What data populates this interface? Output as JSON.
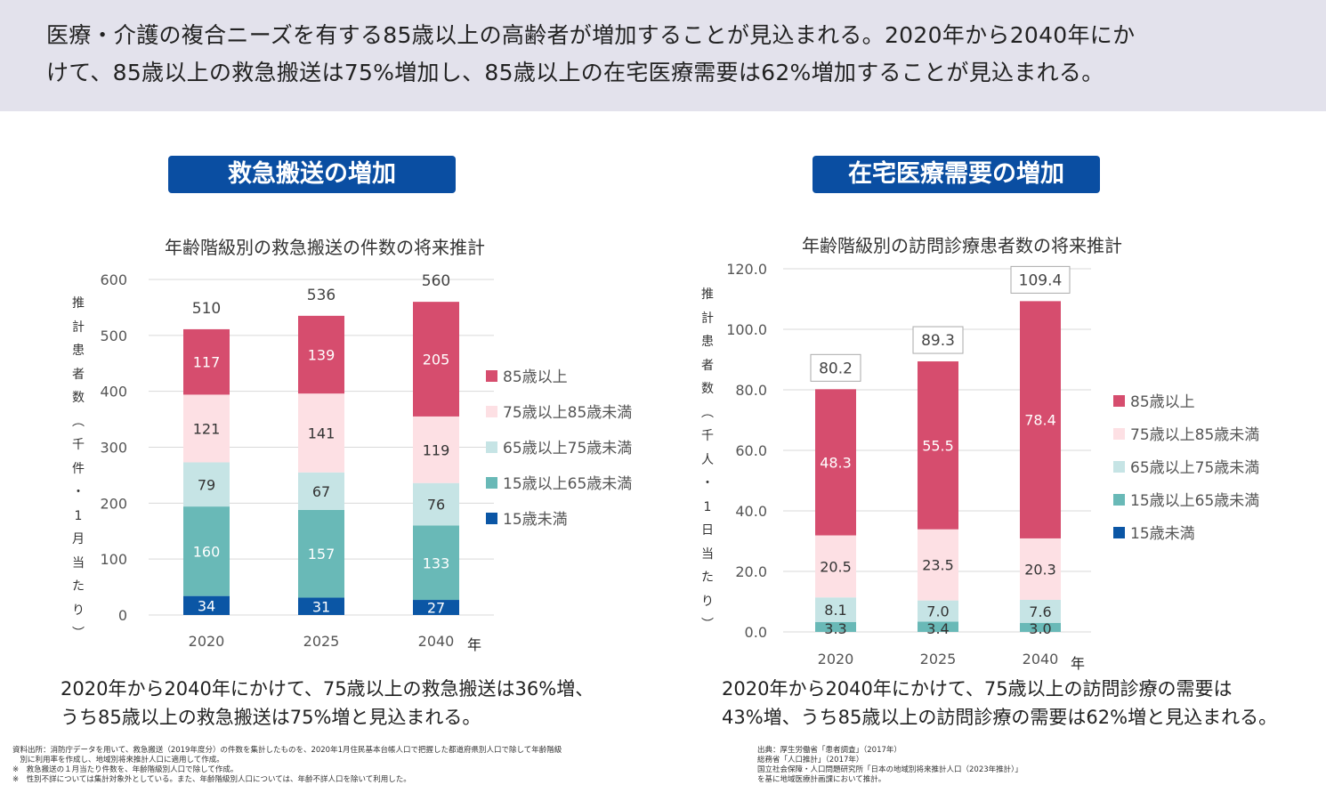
{
  "header": {
    "line1": "医療・介護の複合ニーズを有する85歳以上の高齢者が増加することが見込まれる。2020年から2040年にか",
    "line2": "けて、85歳以上の救急搬送は75%増加し、85歳以上の在宅医療需要は62%増加することが見込まれる。"
  },
  "left_panel": {
    "badge": "救急搬送の増加",
    "summary_line1": "2020年から2040年にかけて、75歳以上の救急搬送は36%増、",
    "summary_line2": "うち85歳以上の救急搬送は75%増と見込まれる。",
    "notes": [
      "資料出所：消防庁データを用いて、救急搬送（2019年度分）の件数を集計したものを、2020年1月住民基本台帳人口で把握した都道府県別人口で除して年齢階級",
      "　別に利用率を作成し、地域別将来推計人口に適用して作成。",
      "※　救急搬送の１月当たり件数を、年齢階級別人口で除して作成。",
      "※　性別不詳については集計対象外としている。また、年齢階級別人口については、年齢不詳人口を除いて利用した。"
    ]
  },
  "right_panel": {
    "badge": "在宅医療需要の増加",
    "summary_line1": "2020年から2040年にかけて、75歳以上の訪問診療の需要は",
    "summary_line2": "43%増、うち85歳以上の訪問診療の需要は62%増と見込まれる。",
    "notes": [
      "出典：厚生労働省「患者調査」（2017年）",
      "総務省「人口推計」（2017年）",
      "国立社会保障・人口問題研究所「日本の地域別将来推計人口（2023年推計）」",
      "を基に地域医療計画課において推計。"
    ]
  },
  "colors": {
    "s85": "#d64d6e",
    "s75_85": "#fde0e4",
    "s65_75": "#c6e4e5",
    "s15_65": "#69b9b7",
    "s0_15": "#0b56a5",
    "badge": "#0a4ea2",
    "header_bg": "#e3e2ec"
  },
  "chart_data": [
    {
      "type": "bar",
      "stacked": true,
      "title": "年齢階級別の救急搬送の件数の将来推計",
      "ylabel": "推計患者数（千件・1月当たり）",
      "xlabel": "年",
      "categories": [
        "2020",
        "2025",
        "2040"
      ],
      "ylim": [
        0,
        600
      ],
      "yticks": [
        "0",
        "100",
        "200",
        "300",
        "400",
        "500",
        "600"
      ],
      "grid": true,
      "legend_position": "right",
      "series": [
        {
          "name": "15歳未満",
          "values": [
            34,
            31,
            27
          ],
          "color_key": "s0_15",
          "label_color": "#ffffff"
        },
        {
          "name": "15歳以上65歳未満",
          "values": [
            160,
            157,
            133
          ],
          "color_key": "s15_65",
          "label_color": "#ffffff"
        },
        {
          "name": "65歳以上75歳未満",
          "values": [
            79,
            67,
            76
          ],
          "color_key": "s65_75",
          "label_color": "#333333"
        },
        {
          "name": "75歳以上85歳未満",
          "values": [
            121,
            141,
            119
          ],
          "color_key": "s75_85",
          "label_color": "#333333"
        },
        {
          "name": "85歳以上",
          "values": [
            117,
            139,
            205
          ],
          "color_key": "s85",
          "label_color": "#ffffff"
        }
      ],
      "totals": [
        "510",
        "536",
        "560"
      ],
      "totals_boxed": false
    },
    {
      "type": "bar",
      "stacked": true,
      "title": "年齢階級別の訪問診療患者数の将来推計",
      "ylabel": "推計患者数（千人・1日当たり）",
      "xlabel": "年",
      "categories": [
        "2020",
        "2025",
        "2040"
      ],
      "ylim": [
        0,
        120
      ],
      "yticks": [
        "0.0",
        "20.0",
        "40.0",
        "60.0",
        "80.0",
        "100.0",
        "120.0"
      ],
      "grid": true,
      "legend_position": "right",
      "series": [
        {
          "name": "15歳未満",
          "values": [
            0,
            0,
            0
          ],
          "color_key": "s0_15",
          "label_color": "#ffffff"
        },
        {
          "name": "15歳以上65歳未満",
          "values": [
            3.3,
            3.4,
            3.0
          ],
          "color_key": "s15_65",
          "label_color": "#333333"
        },
        {
          "name": "65歳以上75歳未満",
          "values": [
            8.1,
            7.0,
            7.6
          ],
          "color_key": "s65_75",
          "label_color": "#333333"
        },
        {
          "name": "75歳以上85歳未満",
          "values": [
            20.5,
            23.5,
            20.3
          ],
          "color_key": "s75_85",
          "label_color": "#333333"
        },
        {
          "name": "85歳以上",
          "values": [
            48.3,
            55.5,
            78.4
          ],
          "color_key": "s85",
          "label_color": "#ffffff"
        }
      ],
      "value_labels": [
        [
          "",
          "",
          ""
        ],
        [
          "3.3",
          "3.4",
          "3.0"
        ],
        [
          "8.1",
          "7.0",
          "7.6"
        ],
        [
          "20.5",
          "23.5",
          "20.3"
        ],
        [
          "48.3",
          "55.5",
          "78.4"
        ]
      ],
      "totals": [
        "80.2",
        "89.3",
        "109.4"
      ],
      "totals_boxed": true
    }
  ],
  "legend": [
    "85歳以上",
    "75歳以上85歳未満",
    "65歳以上75歳未満",
    "15歳以上65歳未満",
    "15歳未満"
  ],
  "legend_color_keys": [
    "s85",
    "s75_85",
    "s65_75",
    "s15_65",
    "s0_15"
  ]
}
